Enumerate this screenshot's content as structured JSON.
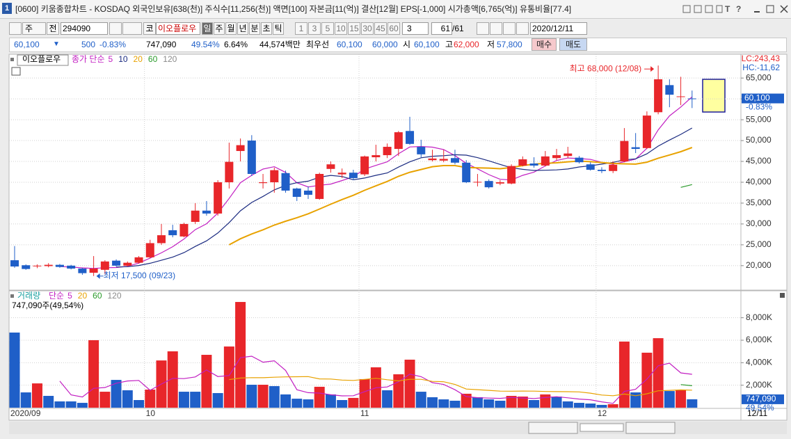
{
  "window": {
    "icon": "1",
    "title": "[0600] 키움종합차트 - KOSDAQ 외국인보유[638(천)] 주식수[11,256(천)] 액면[100] 자본금[11(억)] 결산[12월] EPS[-1,000] 시가총액[6,765(억)] 유통비율[77.4]",
    "tools": [
      "T",
      "?"
    ]
  },
  "toolbar": {
    "period": "주",
    "prev": "전",
    "code": "294090",
    "market": "코",
    "name": "이오플로우",
    "units": [
      "일",
      "주",
      "월",
      "년",
      "분",
      "초",
      "틱"
    ],
    "intervals": [
      "1",
      "3",
      "5",
      "10",
      "15",
      "30",
      "45",
      "60"
    ],
    "count": "3",
    "bars_shown": "61",
    "bars_total": "/61",
    "date": "2020/12/11"
  },
  "quote": {
    "price": "60,100",
    "arrow": "▼",
    "change": "500",
    "change_pct": "-0.83%",
    "volume": "747,090",
    "volume_ratio": "49.54%",
    "turnover": "6.64%",
    "amount": "44,574백만",
    "best_label": "최우선",
    "ask": "60,100",
    "bid": "60,000",
    "open_label": "시",
    "open": "60,100",
    "high_label": "고",
    "high": "62,000",
    "low_label": "저",
    "low": "57,800",
    "buy": "매수",
    "sell": "매도"
  },
  "chart_data": [
    {
      "type": "candlestick",
      "name": "이오플로우",
      "open": [
        21300,
        20100,
        19900,
        19900,
        20200,
        20000,
        19300,
        18300,
        19000,
        21200,
        20000,
        20700,
        22000,
        25400,
        28500,
        27000,
        30500,
        33200,
        32500,
        40000,
        47500,
        50000,
        39800,
        40000,
        42200,
        38500,
        38000,
        36000,
        43200,
        41900,
        42300,
        41900,
        46000,
        46500,
        48000,
        52300,
        48500,
        45300,
        45200,
        45800,
        44700,
        40000,
        40300,
        39700,
        39700,
        44000,
        44500,
        44000,
        45800,
        46300,
        45900,
        44300,
        43000,
        42700,
        45000,
        48400,
        48200,
        56800,
        63300,
        60500,
        60100
      ],
      "high": [
        24700,
        20300,
        20300,
        20600,
        20400,
        20200,
        19500,
        22300,
        21300,
        21500,
        21000,
        22300,
        26200,
        30000,
        29800,
        30300,
        35000,
        35500,
        40500,
        49500,
        50500,
        51300,
        42000,
        43500,
        42800,
        38700,
        39000,
        42300,
        45000,
        43300,
        43000,
        46400,
        49000,
        49300,
        52300,
        55700,
        50200,
        47800,
        47800,
        47800,
        45300,
        42000,
        40700,
        40500,
        44300,
        46200,
        46000,
        47500,
        48000,
        48500,
        46300,
        44800,
        43600,
        45000,
        53000,
        51800,
        57000,
        68000,
        64700,
        65300,
        62000
      ],
      "low": [
        19500,
        19000,
        19400,
        19600,
        19500,
        19100,
        17800,
        17500,
        18000,
        19800,
        19800,
        20500,
        21800,
        25000,
        26800,
        26800,
        30000,
        32000,
        32000,
        38500,
        45000,
        41500,
        38500,
        37500,
        37500,
        35500,
        36000,
        35800,
        42300,
        41000,
        40500,
        41500,
        45000,
        45800,
        46300,
        49000,
        46000,
        45000,
        44800,
        44300,
        39800,
        39000,
        38500,
        39300,
        39500,
        43800,
        43500,
        43800,
        45300,
        45800,
        44500,
        42800,
        42200,
        42200,
        44800,
        47000,
        48000,
        56300,
        58000,
        58500,
        57800
      ],
      "close": [
        19800,
        19200,
        20000,
        20200,
        19700,
        19300,
        18200,
        19300,
        21000,
        20000,
        20700,
        22000,
        25400,
        27300,
        27300,
        30000,
        33200,
        32500,
        40000,
        44900,
        48900,
        42000,
        40000,
        42900,
        38000,
        36500,
        37000,
        42000,
        44300,
        42300,
        41000,
        46200,
        46500,
        48500,
        52000,
        49200,
        46700,
        45700,
        45600,
        44700,
        40000,
        40100,
        38800,
        40000,
        43900,
        45500,
        44000,
        46200,
        46500,
        46900,
        44800,
        43000,
        42700,
        44200,
        49900,
        48000,
        56000,
        64700,
        61000,
        60600,
        60100
      ],
      "up_color": "#e8262a",
      "down_color": "#1f5fc8",
      "ylim": [
        14300,
        70700
      ],
      "yticks": [
        {
          "value": 20000,
          "label": "20,000"
        },
        {
          "value": 25000,
          "label": "25,000"
        },
        {
          "value": 30000,
          "label": "30,000"
        },
        {
          "value": 35000,
          "label": "35,000"
        },
        {
          "value": 40000,
          "label": "40,000"
        },
        {
          "value": 45000,
          "label": "45,000"
        },
        {
          "value": 50000,
          "label": "50,000"
        },
        {
          "value": 55000,
          "label": "55,000"
        },
        {
          "value": 60000,
          "label": "60,000"
        },
        {
          "value": 65000,
          "label": "65,000"
        }
      ],
      "grid": true,
      "legend": {
        "label": "종가 단순",
        "ma_periods": [
          5,
          10,
          20,
          60,
          120
        ],
        "ma_colors": [
          "#c21fc2",
          "#1a2a80",
          "#e8a200",
          "#2a9a2a",
          "#8a8a8a"
        ]
      },
      "corner_labels": [
        "LC:243,43",
        "HC:-11,62"
      ],
      "last_label": "60,100",
      "last_change": "-0.83%",
      "annotations": {
        "high": "최고 68,000 (12/08)",
        "low": "최저 17,500 (09/23)"
      }
    },
    {
      "type": "bar",
      "name": "거래량",
      "categories": [
        "2020/09",
        null,
        null,
        null,
        null,
        null,
        null,
        null,
        null,
        null,
        null,
        null,
        "10",
        null,
        null,
        null,
        null,
        null,
        null,
        null,
        null,
        null,
        null,
        null,
        null,
        null,
        null,
        null,
        null,
        null,
        null,
        "11",
        null,
        null,
        null,
        null,
        null,
        null,
        null,
        null,
        null,
        null,
        null,
        null,
        null,
        null,
        null,
        null,
        null,
        null,
        null,
        null,
        "12",
        null,
        null,
        null,
        null,
        null,
        null,
        null,
        null
      ],
      "values": [
        6680,
        1360,
        2160,
        1050,
        560,
        560,
        430,
        6000,
        1420,
        2470,
        1550,
        680,
        1610,
        4200,
        5010,
        1420,
        1420,
        4700,
        1300,
        5440,
        9400,
        2040,
        2040,
        1920,
        1180,
        800,
        740,
        1860,
        1180,
        680,
        870,
        2540,
        3590,
        1550,
        2970,
        4270,
        1420,
        930,
        740,
        620,
        1240,
        930,
        740,
        620,
        1050,
        990,
        680,
        1180,
        990,
        560,
        430,
        370,
        250,
        310,
        5880,
        1360,
        4890,
        6180,
        1480,
        1550,
        747.09
      ],
      "colors": [
        "#1f5fc8",
        "#1f5fc8",
        "#e8262a",
        "#1f5fc8",
        "#1f5fc8",
        "#1f5fc8",
        "#1f5fc8",
        "#e8262a",
        "#e8262a",
        "#1f5fc8",
        "#1f5fc8",
        "#1f5fc8",
        "#e8262a",
        "#e8262a",
        "#e8262a",
        "#1f5fc8",
        "#1f5fc8",
        "#e8262a",
        "#1f5fc8",
        "#e8262a",
        "#e8262a",
        "#1f5fc8",
        "#e8262a",
        "#1f5fc8",
        "#1f5fc8",
        "#1f5fc8",
        "#1f5fc8",
        "#e8262a",
        "#1f5fc8",
        "#1f5fc8",
        "#e8262a",
        "#e8262a",
        "#e8262a",
        "#1f5fc8",
        "#e8262a",
        "#e8262a",
        "#1f5fc8",
        "#1f5fc8",
        "#1f5fc8",
        "#1f5fc8",
        "#e8262a",
        "#1f5fc8",
        "#1f5fc8",
        "#1f5fc8",
        "#e8262a",
        "#e8262a",
        "#1f5fc8",
        "#e8262a",
        "#1f5fc8",
        "#1f5fc8",
        "#1f5fc8",
        "#1f5fc8",
        "#1f5fc8",
        "#e8262a",
        "#e8262a",
        "#1f5fc8",
        "#e8262a",
        "#e8262a",
        "#1f5fc8",
        "#e8262a",
        "#1f5fc8"
      ],
      "ylim": [
        0,
        10330
      ],
      "yticks": [
        {
          "value": 2000,
          "label": "2,000K"
        },
        {
          "value": 4000,
          "label": "4,000K"
        },
        {
          "value": 6000,
          "label": "6,000K"
        },
        {
          "value": 8000,
          "label": "8,000K"
        }
      ],
      "grid": true,
      "legend": {
        "label": "단순",
        "ma_periods": [
          5,
          20,
          60,
          120
        ],
        "ma_colors": [
          "#c21fc2",
          "#e8a200",
          "#2a9a2a",
          "#8a8a8a"
        ]
      },
      "info": "747,090주(49,54%)",
      "last_label": "747,090",
      "last_ratio": "49.54%",
      "end_date": "12/11"
    }
  ]
}
